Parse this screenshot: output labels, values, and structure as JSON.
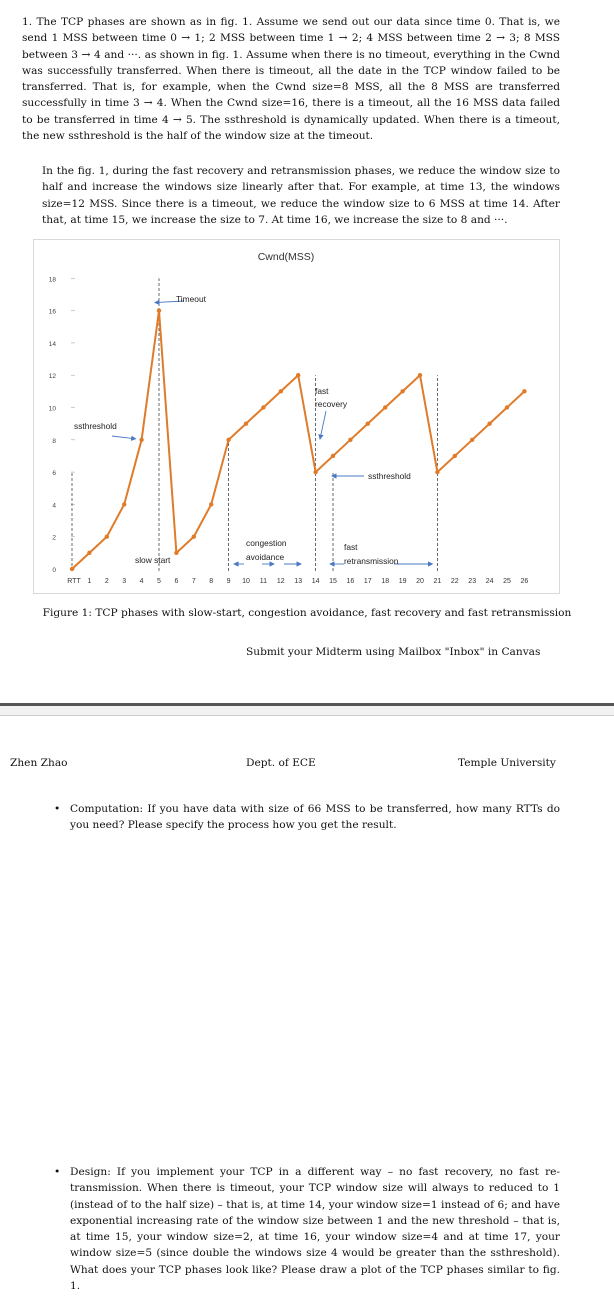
{
  "paragraphs": {
    "p1": "1. The TCP phases are shown as in fig. 1. Assume we send out our data since time 0. That is, we send 1 MSS between time 0 → 1; 2 MSS between time 1 → 2; 4 MSS between time 2 → 3; 8 MSS between 3 → 4 and ···. as shown in fig. 1. Assume when there is no timeout, everything in the Cwnd was successfully transferred. When there is timeout, all the date in the TCP window failed to be transferred. That is, for example, when the Cwnd size=8 MSS, all the 8 MSS are transferred successfully in time 3 → 4. When the Cwnd size=16, there is a timeout, all the 16 MSS data failed to be transferred in time 4 → 5. The ssthreshold is dynamically updated. When there is a timeout, the new ssthreshold is the half of the window size at the timeout.",
    "p2": "In the fig. 1, during the fast recovery and retransmission phases, we reduce the window size to half and increase the windows size linearly after that. For example, at time 13, the windows size=12 MSS. Since there is a timeout, we reduce the window size to 6 MSS at time 14. After that, at time 15, we increase the size to 7. At time 16, we increase the size to 8 and ···."
  },
  "chart_data": {
    "type": "line",
    "title": "Cwnd(MSS)",
    "xlabel": "",
    "ylabel": "",
    "x_tick_labels": [
      "RTT",
      "1",
      "2",
      "3",
      "4",
      "5",
      "6",
      "7",
      "8",
      "9",
      "10",
      "11",
      "12",
      "13",
      "14",
      "15",
      "16",
      "17",
      "18",
      "19",
      "20",
      "21",
      "22",
      "23",
      "24",
      "25",
      "26"
    ],
    "y_ticks": [
      0,
      2,
      4,
      6,
      8,
      10,
      12,
      14,
      16,
      18
    ],
    "ylim": [
      0,
      18
    ],
    "grid": false,
    "line_color": "#e07b2a",
    "series": [
      {
        "x": [
          0,
          1,
          2,
          3,
          4,
          5,
          6,
          7,
          8,
          9,
          10,
          11,
          12,
          13,
          14,
          15,
          16,
          17,
          18,
          19,
          20,
          21,
          22,
          23,
          24,
          25,
          26
        ],
        "values": [
          0,
          1,
          2,
          4,
          8,
          16,
          1,
          2,
          4,
          8,
          9,
          10,
          11,
          12,
          6,
          7,
          8,
          9,
          10,
          11,
          12,
          6,
          7,
          8,
          9,
          10,
          11
        ]
      }
    ],
    "annotations": {
      "timeout": "Timeout",
      "ssthreshold_left": "ssthreshold",
      "ssthreshold_right": "ssthreshold",
      "fast_recovery_1": "fast",
      "fast_recovery_2": "recovery",
      "congestion_1": "congestion",
      "congestion_2": "avoidance",
      "slow_start": "slow start",
      "fast_retrans_1": "fast",
      "fast_retrans_2": "retransmission"
    }
  },
  "caption": "Figure 1: TCP phases with slow-start, congestion avoidance, fast recovery and fast retransmission",
  "submit_note": "Submit your Midterm using Mailbox \"Inbox\" in Canvas",
  "header": {
    "left": "Zhen Zhao",
    "center": "Dept. of ECE",
    "right": "Temple University"
  },
  "bullets": {
    "bullet_char": "•",
    "b1": "Computation: If you have data with size of 66 MSS to be transferred, how many RTTs do you need? Please specify the process how you get the result.",
    "b2": "Design: If you implement your TCP in a different way – no fast recovery, no fast re-transmission. When there is timeout, your TCP window size will always to reduced to 1 (instead of to the half size) – that is, at time 14, your window size=1 instead of 6; and have exponential increasing rate of the window size between 1 and the new threshold – that is, at time 15, your window size=2, at time 16, your window size=4 and at time 17, your window size=5 (since double the windows size 4 would be greater than the ssthreshold). What does your TCP phases look like? Please draw a plot of the TCP phases similar to fig. 1."
  }
}
